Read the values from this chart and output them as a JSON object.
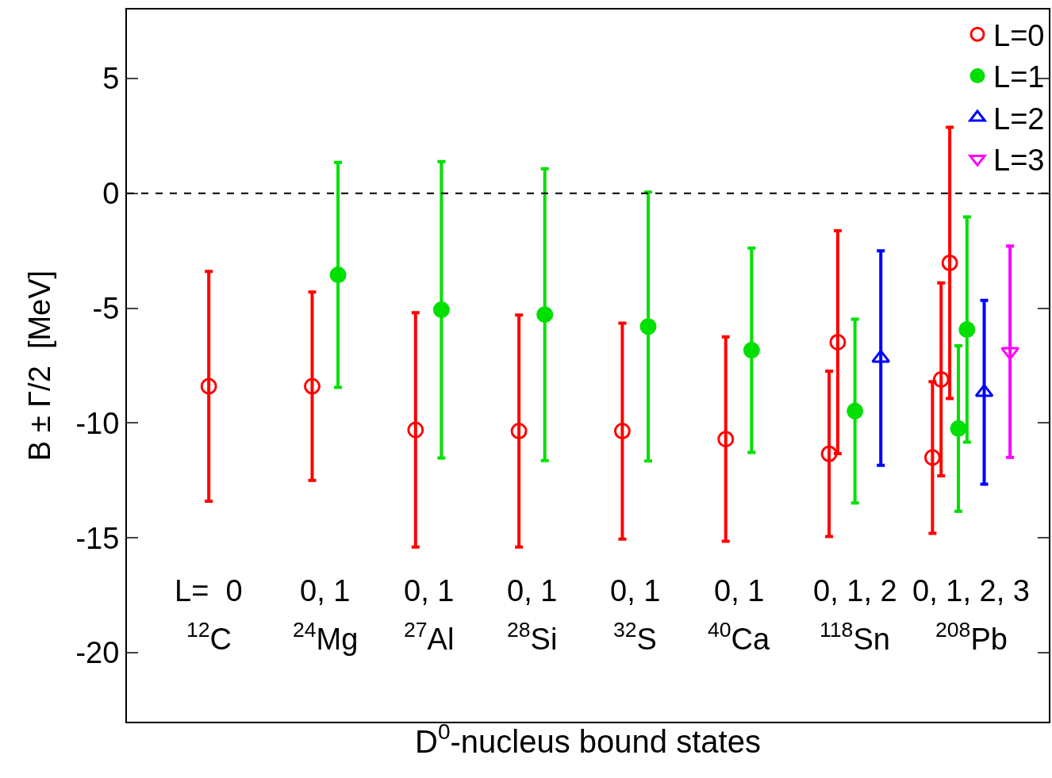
{
  "chart_data": {
    "type": "scatter",
    "xlabel": "D$^{0}$-nucleus bound states",
    "ylabel": "B ± Γ/2  [MeV]",
    "categories": [
      null,
      null,
      null,
      null,
      null,
      null,
      null,
      null,
      null,
      null,
      null,
      null,
      null,
      null,
      null,
      null,
      null,
      null,
      null,
      null,
      null,
      null,
      null,
      null,
      null,
      null,
      null,
      null,
      null,
      null,
      null,
      null,
      null,
      null,
      null,
      null,
      null,
      null,
      null,
      null,
      null,
      null,
      null,
      null,
      null,
      null,
      null,
      null,
      null,
      null,
      null,
      null,
      null,
      null,
      null,
      null,
      null,
      null,
      null,
      null,
      null,
      null,
      null,
      null,
      null,
      null,
      null,
      null,
      null,
      null,
      null,
      null,
      null,
      null,
      null,
      null,
      null,
      null,
      null,
      null,
      null,
      null,
      null,
      null,
      null,
      null,
      null,
      null,
      null,
      null,
      null,
      null,
      null,
      null,
      null,
      null,
      null,
      null,
      null,
      null,
      null,
      null,
      null,
      null,
      null,
      null,
      null
    ],
    "ylim": [
      -23,
      8
    ],
    "yticks": [
      -20,
      -15,
      -10,
      -5,
      0,
      5
    ],
    "tick_labels": "y",
    "legend": "top right",
    "ref_lines": [
      {
        "axis": "y",
        "value": 0,
        "color": "#000000",
        "line_style": "dashed"
      }
    ],
    "series": [
      {
        "name": "L=0",
        "color": "#ff0000",
        "marker": "circle",
        "values": [
          null,
          null,
          null,
          null,
          null,
          null,
          null,
          null,
          null,
          -8.4,
          null,
          null,
          null,
          null,
          null,
          null,
          null,
          null,
          null,
          null,
          null,
          -8.4,
          null,
          null,
          null,
          null,
          null,
          null,
          null,
          null,
          null,
          null,
          null,
          -10.3,
          null,
          null,
          null,
          null,
          null,
          null,
          null,
          null,
          null,
          null,
          null,
          -10.35,
          null,
          null,
          null,
          null,
          null,
          null,
          null,
          null,
          null,
          null,
          null,
          -10.35,
          null,
          null,
          null,
          null,
          null,
          null,
          null,
          null,
          null,
          null,
          null,
          -10.7,
          null,
          null,
          null,
          null,
          null,
          null,
          null,
          null,
          null,
          null,
          null,
          -11.34,
          -6.48,
          null,
          null,
          null,
          null,
          null,
          null,
          null,
          null,
          null,
          null,
          -11.5,
          -8.1,
          -3.03,
          null,
          null,
          null,
          null,
          null,
          null,
          null,
          null,
          null,
          null,
          null
        ],
        "errors": [
          null,
          null,
          null,
          null,
          null,
          null,
          null,
          null,
          null,
          5.0,
          null,
          null,
          null,
          null,
          null,
          null,
          null,
          null,
          null,
          null,
          null,
          4.1,
          null,
          null,
          null,
          null,
          null,
          null,
          null,
          null,
          null,
          null,
          null,
          5.1,
          null,
          null,
          null,
          null,
          null,
          null,
          null,
          null,
          null,
          null,
          null,
          5.05,
          null,
          null,
          null,
          null,
          null,
          null,
          null,
          null,
          null,
          null,
          null,
          4.7,
          null,
          null,
          null,
          null,
          null,
          null,
          null,
          null,
          null,
          null,
          null,
          4.45,
          null,
          null,
          null,
          null,
          null,
          null,
          null,
          null,
          null,
          null,
          null,
          3.6,
          4.85,
          null,
          null,
          null,
          null,
          null,
          null,
          null,
          null,
          null,
          null,
          3.3,
          4.2,
          5.9,
          null,
          null,
          null,
          null,
          null,
          null,
          null,
          null,
          null,
          null,
          null
        ]
      },
      {
        "name": "L=1",
        "color": "#00e000",
        "marker": "circle",
        "values": [
          null,
          null,
          null,
          null,
          null,
          null,
          null,
          null,
          null,
          null,
          null,
          null,
          null,
          null,
          null,
          null,
          null,
          null,
          null,
          null,
          null,
          null,
          null,
          null,
          -3.55,
          null,
          null,
          null,
          null,
          null,
          null,
          null,
          null,
          null,
          null,
          null,
          -5.07,
          null,
          null,
          null,
          null,
          null,
          null,
          null,
          null,
          null,
          null,
          null,
          -5.28,
          null,
          null,
          null,
          null,
          null,
          null,
          null,
          null,
          null,
          null,
          null,
          -5.8,
          null,
          null,
          null,
          null,
          null,
          null,
          null,
          null,
          null,
          null,
          null,
          -6.83,
          null,
          null,
          null,
          null,
          null,
          null,
          null,
          null,
          null,
          null,
          null,
          -9.48,
          null,
          null,
          null,
          null,
          null,
          null,
          null,
          null,
          null,
          null,
          null,
          -10.24,
          -5.93,
          null,
          null,
          null,
          null,
          null,
          null,
          null,
          null,
          null
        ],
        "errors": [
          null,
          null,
          null,
          null,
          null,
          null,
          null,
          null,
          null,
          null,
          null,
          null,
          null,
          null,
          null,
          null,
          null,
          null,
          null,
          null,
          null,
          null,
          null,
          null,
          4.9,
          null,
          null,
          null,
          null,
          null,
          null,
          null,
          null,
          null,
          null,
          null,
          6.45,
          null,
          null,
          null,
          null,
          null,
          null,
          null,
          null,
          null,
          null,
          null,
          6.35,
          null,
          null,
          null,
          null,
          null,
          null,
          null,
          null,
          null,
          null,
          null,
          5.85,
          null,
          null,
          null,
          null,
          null,
          null,
          null,
          null,
          null,
          null,
          null,
          4.45,
          null,
          null,
          null,
          null,
          null,
          null,
          null,
          null,
          null,
          null,
          null,
          4.0,
          null,
          null,
          null,
          null,
          null,
          null,
          null,
          null,
          null,
          null,
          null,
          3.6,
          4.9,
          null,
          null,
          null,
          null,
          null,
          null,
          null,
          null,
          null
        ]
      },
      {
        "name": "L=2",
        "color": "#0000ff",
        "marker": "triangle",
        "values": [
          null,
          null,
          null,
          null,
          null,
          null,
          null,
          null,
          null,
          null,
          null,
          null,
          null,
          null,
          null,
          null,
          null,
          null,
          null,
          null,
          null,
          null,
          null,
          null,
          null,
          null,
          null,
          null,
          null,
          null,
          null,
          null,
          null,
          null,
          null,
          null,
          null,
          null,
          null,
          null,
          null,
          null,
          null,
          null,
          null,
          null,
          null,
          null,
          null,
          null,
          null,
          null,
          null,
          null,
          null,
          null,
          null,
          null,
          null,
          null,
          null,
          null,
          null,
          null,
          null,
          null,
          null,
          null,
          null,
          null,
          null,
          null,
          null,
          null,
          null,
          null,
          null,
          null,
          null,
          null,
          null,
          null,
          null,
          null,
          null,
          null,
          null,
          -7.17,
          null,
          null,
          null,
          null,
          null,
          null,
          null,
          null,
          null,
          null,
          null,
          -8.66,
          null,
          null,
          null,
          null,
          null,
          null,
          null
        ],
        "errors": [
          null,
          null,
          null,
          null,
          null,
          null,
          null,
          null,
          null,
          null,
          null,
          null,
          null,
          null,
          null,
          null,
          null,
          null,
          null,
          null,
          null,
          null,
          null,
          null,
          null,
          null,
          null,
          null,
          null,
          null,
          null,
          null,
          null,
          null,
          null,
          null,
          null,
          null,
          null,
          null,
          null,
          null,
          null,
          null,
          null,
          null,
          null,
          null,
          null,
          null,
          null,
          null,
          null,
          null,
          null,
          null,
          null,
          null,
          null,
          null,
          null,
          null,
          null,
          null,
          null,
          null,
          null,
          null,
          null,
          null,
          null,
          null,
          null,
          null,
          null,
          null,
          null,
          null,
          null,
          null,
          null,
          null,
          null,
          null,
          null,
          null,
          null,
          4.67,
          null,
          null,
          null,
          null,
          null,
          null,
          null,
          null,
          null,
          null,
          null,
          4.0,
          null,
          null,
          null,
          null,
          null,
          null,
          null
        ]
      },
      {
        "name": "L=3",
        "color": "#ff00ff",
        "marker": "triangle",
        "values": [
          null,
          null,
          null,
          null,
          null,
          null,
          null,
          null,
          null,
          null,
          null,
          null,
          null,
          null,
          null,
          null,
          null,
          null,
          null,
          null,
          null,
          null,
          null,
          null,
          null,
          null,
          null,
          null,
          null,
          null,
          null,
          null,
          null,
          null,
          null,
          null,
          null,
          null,
          null,
          null,
          null,
          null,
          null,
          null,
          null,
          null,
          null,
          null,
          null,
          null,
          null,
          null,
          null,
          null,
          null,
          null,
          null,
          null,
          null,
          null,
          null,
          null,
          null,
          null,
          null,
          null,
          null,
          null,
          null,
          null,
          null,
          null,
          null,
          null,
          null,
          null,
          null,
          null,
          null,
          null,
          null,
          null,
          null,
          null,
          null,
          null,
          null,
          null,
          null,
          null,
          null,
          null,
          null,
          null,
          null,
          null,
          null,
          null,
          null,
          null,
          null,
          null,
          -6.9,
          null,
          null,
          null,
          null
        ],
        "errors": [
          null,
          null,
          null,
          null,
          null,
          null,
          null,
          null,
          null,
          null,
          null,
          null,
          null,
          null,
          null,
          null,
          null,
          null,
          null,
          null,
          null,
          null,
          null,
          null,
          null,
          null,
          null,
          null,
          null,
          null,
          null,
          null,
          null,
          null,
          null,
          null,
          null,
          null,
          null,
          null,
          null,
          null,
          null,
          null,
          null,
          null,
          null,
          null,
          null,
          null,
          null,
          null,
          null,
          null,
          null,
          null,
          null,
          null,
          null,
          null,
          null,
          null,
          null,
          null,
          null,
          null,
          null,
          null,
          null,
          null,
          null,
          null,
          null,
          null,
          null,
          null,
          null,
          null,
          null,
          null,
          null,
          null,
          null,
          null,
          null,
          null,
          null,
          null,
          null,
          null,
          null,
          null,
          null,
          null,
          null,
          null,
          null,
          null,
          null,
          null,
          null,
          null,
          4.6,
          null,
          null,
          null,
          null
        ]
      }
    ],
    "annotations": [
      "L=  0",
      "0, 1",
      "0, 1",
      "0, 1",
      "0, 1",
      "0, 1",
      "0, 1, 2",
      "0, 1, 2, 3",
      "$^{12}$C",
      "$^{24}$Mg",
      "$^{27}$Al",
      "$^{28}$Si",
      "$^{32}$S",
      "$^{40}$Ca",
      "$^{118}$Sn",
      "$^{208}$Pb"
    ]
  }
}
